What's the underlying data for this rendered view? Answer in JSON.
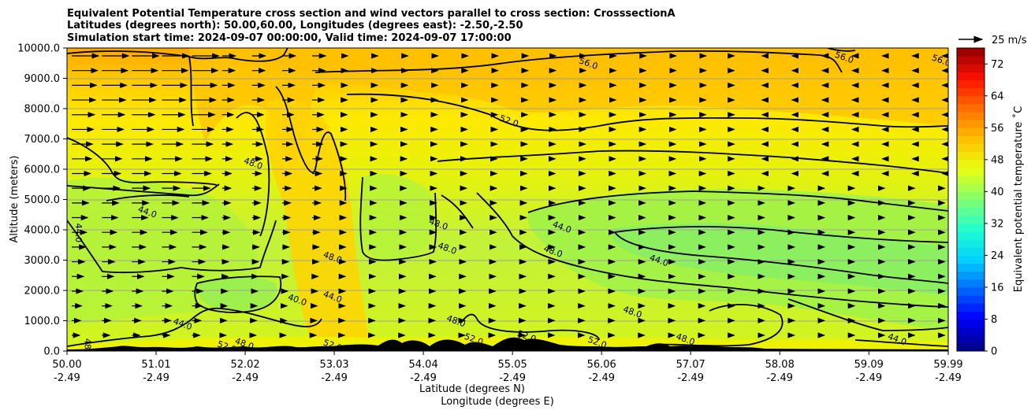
{
  "chart_data": {
    "type": "contour",
    "title_lines": [
      "Equivalent Potential Temperature cross section and wind vectors parallel to cross section: CrosssectionA",
      "Latitudes (degrees north): 50.00,60.00, Longitudes (degrees east): -2.50,-2.50",
      "Simulation start time: 2024-09-07 00:00:00, Valid time: 2024-09-07 17:00:00"
    ],
    "ylabel": "Altitude (meters)",
    "xlabel_lat": "Latitude (degrees N)",
    "xlabel_lon": "Longitude (degrees E)",
    "ylim": [
      0,
      10000
    ],
    "xlim": [
      50.0,
      59.99
    ],
    "y_ticks": [
      "0.0",
      "1000.0",
      "2000.0",
      "3000.0",
      "4000.0",
      "5000.0",
      "6000.0",
      "7000.0",
      "8000.0",
      "9000.0",
      "10000.0"
    ],
    "y_tick_values": [
      0,
      1000,
      2000,
      3000,
      4000,
      5000,
      6000,
      7000,
      8000,
      9000,
      10000
    ],
    "x_tick_values": [
      50.0,
      51.01,
      52.02,
      53.03,
      54.04,
      55.05,
      56.06,
      57.07,
      58.08,
      59.09,
      59.99
    ],
    "x_ticks_lat": [
      "50.00",
      "51.01",
      "52.02",
      "53.03",
      "54.04",
      "55.05",
      "56.06",
      "57.07",
      "58.08",
      "59.09",
      "59.99"
    ],
    "x_ticks_lon": [
      "-2.49",
      "-2.49",
      "-2.49",
      "-2.49",
      "-2.49",
      "-2.49",
      "-2.49",
      "-2.49",
      "-2.49",
      "-2.49",
      "-2.49"
    ],
    "grid": true,
    "colorbar": {
      "label": "Equivalent potential temperature ˚C",
      "min": 0,
      "max": 76,
      "ticks": [
        "0",
        "8",
        "16",
        "24",
        "32",
        "40",
        "48",
        "56",
        "64",
        "72"
      ],
      "tick_values": [
        0,
        8,
        16,
        24,
        32,
        40,
        48,
        56,
        64,
        72
      ]
    },
    "vector_key": {
      "label": "25 m/s",
      "speed": 25
    },
    "contour_labels": [
      {
        "text": "56.0",
        "lat": 55.9,
        "alt": 9400
      },
      {
        "text": "56.0",
        "lat": 58.8,
        "alt": 9600
      },
      {
        "text": "56.0",
        "lat": 59.9,
        "alt": 9500
      },
      {
        "text": "52.0",
        "lat": 55.0,
        "alt": 7500
      },
      {
        "text": "48.0",
        "lat": 52.1,
        "alt": 6100
      },
      {
        "text": "48.0",
        "lat": 54.2,
        "alt": 4100
      },
      {
        "text": "48.0",
        "lat": 54.3,
        "alt": 3300
      },
      {
        "text": "48.0",
        "lat": 53.0,
        "alt": 3000
      },
      {
        "text": "48.0",
        "lat": 55.5,
        "alt": 3200
      },
      {
        "text": "48.0",
        "lat": 56.4,
        "alt": 1200
      },
      {
        "text": "48.0",
        "lat": 57.0,
        "alt": 300
      },
      {
        "text": "48.0",
        "lat": 50.2,
        "alt": 100
      },
      {
        "text": "44.0",
        "lat": 50.1,
        "alt": 3900
      },
      {
        "text": "44.0",
        "lat": 50.9,
        "alt": 4500
      },
      {
        "text": "44.0",
        "lat": 55.6,
        "alt": 4000
      },
      {
        "text": "44.0",
        "lat": 56.7,
        "alt": 2900
      },
      {
        "text": "44.0",
        "lat": 51.3,
        "alt": 800
      },
      {
        "text": "44.0",
        "lat": 53.0,
        "alt": 1700
      },
      {
        "text": "44.0",
        "lat": 59.4,
        "alt": 300
      },
      {
        "text": "40.0",
        "lat": 52.6,
        "alt": 1600
      },
      {
        "text": "52.0",
        "lat": 51.8,
        "alt": 50
      },
      {
        "text": "52.0",
        "lat": 53.0,
        "alt": 100
      },
      {
        "text": "52.0",
        "lat": 54.6,
        "alt": 300
      },
      {
        "text": "52.0",
        "lat": 55.2,
        "alt": 400
      },
      {
        "text": "48.0",
        "lat": 52.0,
        "alt": 150
      },
      {
        "text": "48.0",
        "lat": 54.4,
        "alt": 900
      },
      {
        "text": "52.0",
        "lat": 56.0,
        "alt": 200
      }
    ]
  }
}
